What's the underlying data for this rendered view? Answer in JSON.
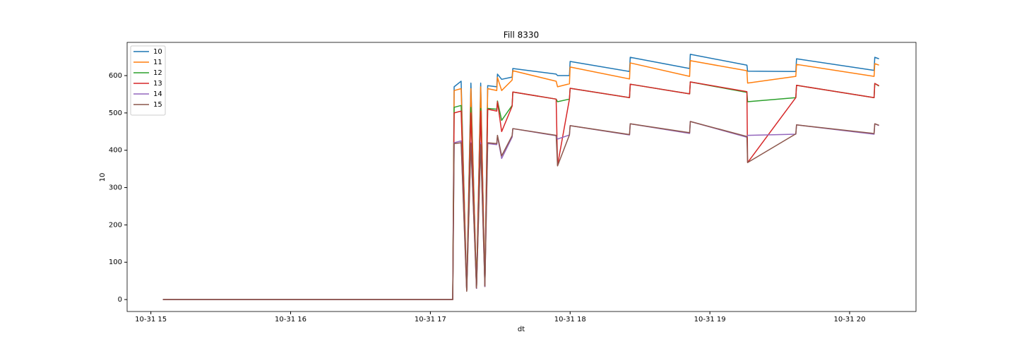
{
  "chart_data": {
    "type": "line",
    "title": "Fill 8330",
    "x_label": "dt",
    "y_label": "10",
    "x": [
      15.086,
      17.16,
      17.17,
      17.22,
      17.26,
      17.29,
      17.33,
      17.36,
      17.39,
      17.41,
      17.475,
      17.48,
      17.51,
      17.585,
      17.59,
      17.9,
      17.91,
      17.995,
      18.0,
      18.425,
      18.43,
      18.855,
      18.86,
      19.265,
      19.27,
      19.615,
      19.62,
      20.175,
      20.18,
      20.21
    ],
    "series": [
      {
        "name": "10",
        "color": "#1f77b4",
        "values": [
          0,
          0,
          570,
          585,
          25,
          580,
          30,
          580,
          35,
          573,
          570,
          604,
          590,
          596,
          619,
          604,
          600,
          600,
          638,
          611,
          649,
          619,
          657,
          628,
          612,
          611,
          645,
          614,
          649,
          645
        ]
      },
      {
        "name": "11",
        "color": "#ff7f0e",
        "values": [
          0,
          0,
          560,
          565,
          25,
          565,
          30,
          570,
          35,
          565,
          560,
          595,
          560,
          588,
          613,
          585,
          570,
          578,
          623,
          591,
          634,
          598,
          640,
          613,
          580,
          598,
          630,
          598,
          632,
          628
        ]
      },
      {
        "name": "12",
        "color": "#2ca02c",
        "values": [
          0,
          0,
          515,
          520,
          25,
          515,
          30,
          512,
          35,
          512,
          510,
          532,
          480,
          520,
          556,
          537,
          530,
          537,
          566,
          541,
          577,
          551,
          583,
          555,
          530,
          541,
          574,
          541,
          579,
          572
        ]
      },
      {
        "name": "13",
        "color": "#d62728",
        "values": [
          0,
          0,
          500,
          505,
          25,
          500,
          30,
          505,
          35,
          510,
          505,
          530,
          450,
          518,
          556,
          537,
          360,
          537,
          566,
          541,
          577,
          551,
          583,
          557,
          367,
          541,
          574,
          541,
          579,
          573
        ]
      },
      {
        "name": "14",
        "color": "#9467bd",
        "values": [
          0,
          0,
          420,
          425,
          25,
          420,
          30,
          420,
          35,
          418,
          415,
          438,
          378,
          435,
          458,
          439,
          430,
          441,
          466,
          441,
          471,
          445,
          477,
          435,
          440,
          443,
          468,
          443,
          471,
          466
        ]
      },
      {
        "name": "15",
        "color": "#8c564b",
        "values": [
          0,
          0,
          418,
          420,
          22,
          418,
          32,
          415,
          37,
          420,
          418,
          440,
          385,
          439,
          458,
          440,
          358,
          441,
          466,
          442,
          471,
          447,
          477,
          437,
          367,
          444,
          468,
          445,
          471,
          467
        ]
      }
    ],
    "xlim": [
      14.83,
      20.475
    ],
    "xticks": [
      {
        "value": 15,
        "label": "10-31 15"
      },
      {
        "value": 16,
        "label": "10-31 16"
      },
      {
        "value": 17,
        "label": "10-31 17"
      },
      {
        "value": 18,
        "label": "10-31 18"
      },
      {
        "value": 19,
        "label": "10-31 19"
      },
      {
        "value": 20,
        "label": "10-31 20"
      }
    ],
    "ylim": [
      -32,
      689
    ],
    "yticks": [
      0,
      100,
      200,
      300,
      400,
      500,
      600
    ],
    "grid": false,
    "legend": "upper left"
  }
}
